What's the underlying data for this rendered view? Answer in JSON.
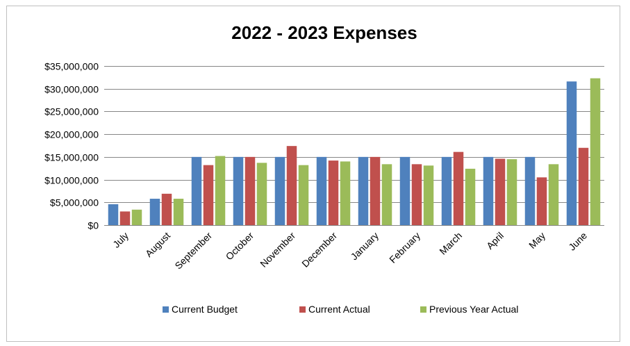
{
  "chart_data": {
    "type": "bar",
    "title": "2022 - 2023 Expenses",
    "xlabel": "",
    "ylabel": "",
    "categories": [
      "July",
      "August",
      "September",
      "October",
      "November",
      "December",
      "January",
      "February",
      "March",
      "April",
      "May",
      "June"
    ],
    "ylim": [
      0,
      35000000
    ],
    "yticks": [
      0,
      5000000,
      10000000,
      15000000,
      20000000,
      25000000,
      30000000,
      35000000
    ],
    "ytick_labels": [
      "$0",
      "$5,000,000",
      "$10,000,000",
      "$15,000,000",
      "$20,000,000",
      "$25,000,000",
      "$30,000,000",
      "$35,000,000"
    ],
    "grid": true,
    "legend_position": "bottom",
    "series": [
      {
        "name": "Current Budget",
        "color": "#4f81bd",
        "values": [
          4600000,
          5800000,
          15000000,
          15000000,
          15000000,
          15000000,
          15000000,
          15000000,
          15000000,
          15000000,
          15000000,
          31600000
        ]
      },
      {
        "name": "Current Actual",
        "color": "#c0504d",
        "values": [
          3000000,
          6900000,
          13200000,
          15000000,
          17400000,
          14200000,
          15000000,
          13400000,
          16100000,
          14600000,
          10500000,
          17000000
        ]
      },
      {
        "name": "Previous Year Actual",
        "color": "#9bbb59",
        "values": [
          3400000,
          5800000,
          15200000,
          13700000,
          13200000,
          14000000,
          13400000,
          13100000,
          12400000,
          14500000,
          13400000,
          32300000
        ]
      }
    ]
  }
}
